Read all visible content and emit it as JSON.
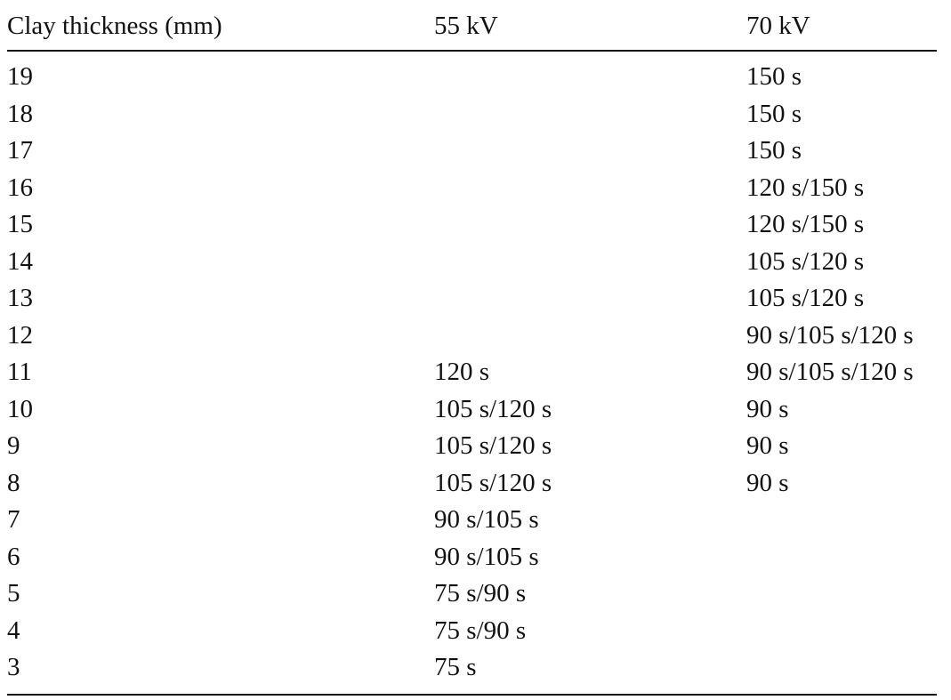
{
  "table": {
    "headers": [
      "Clay thickness (mm)",
      "55 kV",
      "70 kV"
    ],
    "rows": [
      {
        "thickness": "19",
        "kv55": "",
        "kv70": "150 s"
      },
      {
        "thickness": "18",
        "kv55": "",
        "kv70": "150 s"
      },
      {
        "thickness": "17",
        "kv55": "",
        "kv70": "150 s"
      },
      {
        "thickness": "16",
        "kv55": "",
        "kv70": "120 s/150 s"
      },
      {
        "thickness": "15",
        "kv55": "",
        "kv70": "120 s/150 s"
      },
      {
        "thickness": "14",
        "kv55": "",
        "kv70": "105 s/120 s"
      },
      {
        "thickness": "13",
        "kv55": "",
        "kv70": "105 s/120 s"
      },
      {
        "thickness": "12",
        "kv55": "",
        "kv70": "90 s/105 s/120 s"
      },
      {
        "thickness": "11",
        "kv55": "120 s",
        "kv70": "90 s/105 s/120 s"
      },
      {
        "thickness": "10",
        "kv55": "105 s/120 s",
        "kv70": "90 s"
      },
      {
        "thickness": "9",
        "kv55": "105 s/120 s",
        "kv70": "90 s"
      },
      {
        "thickness": "8",
        "kv55": "105 s/120 s",
        "kv70": "90 s"
      },
      {
        "thickness": "7",
        "kv55": "90 s/105 s",
        "kv70": ""
      },
      {
        "thickness": "6",
        "kv55": "90 s/105 s",
        "kv70": ""
      },
      {
        "thickness": "5",
        "kv55": "75 s/90 s",
        "kv70": ""
      },
      {
        "thickness": "4",
        "kv55": "75 s/90 s",
        "kv70": ""
      },
      {
        "thickness": "3",
        "kv55": "75 s",
        "kv70": ""
      }
    ]
  }
}
